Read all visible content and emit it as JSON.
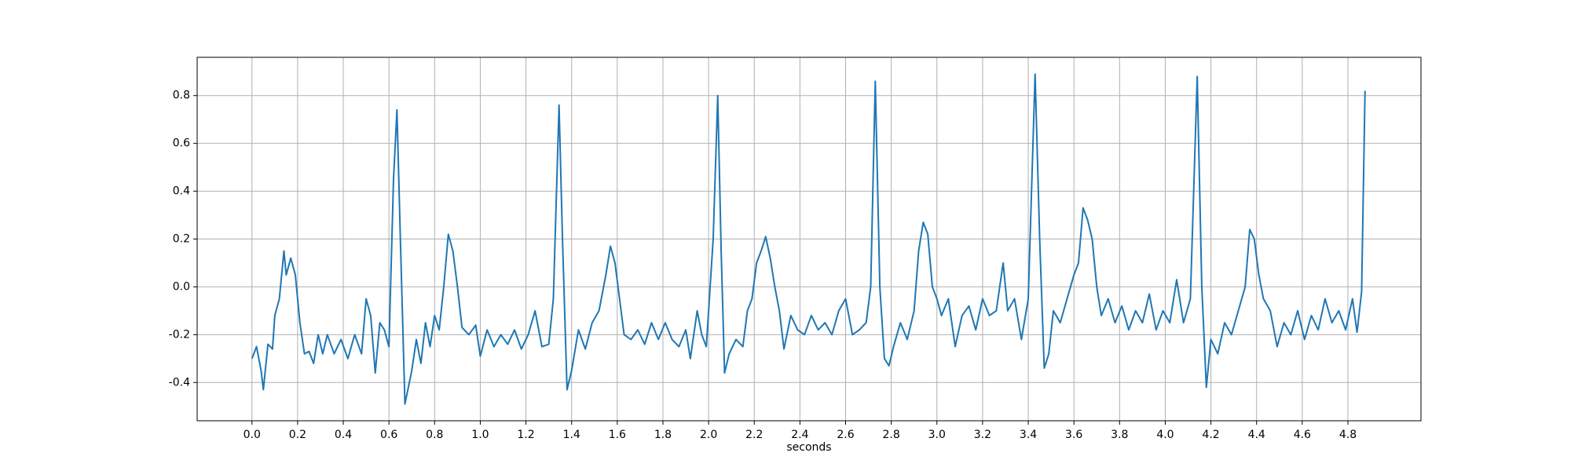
{
  "chart_data": {
    "type": "line",
    "xlabel": "seconds",
    "color": "#1f77b4",
    "grid": true,
    "xlim": [
      -0.24,
      5.12
    ],
    "ylim": [
      -0.56,
      0.96
    ],
    "xticks": [
      {
        "value": 0,
        "label": "0.0"
      },
      0.2,
      0.4,
      0.6,
      0.8,
      {
        "value": 1,
        "label": "1.0"
      },
      1.2,
      1.4,
      1.6,
      1.8,
      {
        "value": 2,
        "label": "2.0"
      },
      2.2,
      2.4,
      2.6,
      2.8,
      {
        "value": 3,
        "label": "3.0"
      },
      3.2,
      3.4,
      3.6,
      3.8,
      {
        "value": 4,
        "label": "4.0"
      },
      4.2,
      4.4,
      4.6,
      4.8
    ],
    "yticks": [
      -0.4,
      -0.2,
      {
        "value": 0,
        "label": "0.0"
      },
      0.2,
      0.4,
      0.6,
      0.8
    ],
    "x": [
      0.0,
      0.02,
      0.04,
      0.05,
      0.07,
      0.09,
      0.1,
      0.12,
      0.14,
      0.15,
      0.17,
      0.19,
      0.21,
      0.23,
      0.25,
      0.27,
      0.29,
      0.31,
      0.33,
      0.36,
      0.39,
      0.42,
      0.45,
      0.48,
      0.5,
      0.52,
      0.54,
      0.56,
      0.58,
      0.6,
      0.62,
      0.635,
      0.65,
      0.67,
      0.7,
      0.72,
      0.74,
      0.76,
      0.78,
      0.8,
      0.82,
      0.84,
      0.86,
      0.88,
      0.9,
      0.92,
      0.95,
      0.98,
      1.0,
      1.03,
      1.06,
      1.09,
      1.12,
      1.15,
      1.18,
      1.21,
      1.24,
      1.27,
      1.3,
      1.32,
      1.345,
      1.36,
      1.38,
      1.4,
      1.43,
      1.46,
      1.49,
      1.52,
      1.55,
      1.57,
      1.59,
      1.61,
      1.63,
      1.66,
      1.69,
      1.72,
      1.75,
      1.78,
      1.81,
      1.84,
      1.87,
      1.9,
      1.92,
      1.95,
      1.97,
      1.99,
      2.02,
      2.04,
      2.055,
      2.07,
      2.09,
      2.12,
      2.15,
      2.17,
      2.19,
      2.21,
      2.23,
      2.25,
      2.27,
      2.29,
      2.31,
      2.33,
      2.36,
      2.39,
      2.42,
      2.45,
      2.48,
      2.51,
      2.54,
      2.57,
      2.6,
      2.63,
      2.66,
      2.69,
      2.71,
      2.73,
      2.75,
      2.77,
      2.79,
      2.81,
      2.84,
      2.87,
      2.9,
      2.92,
      2.94,
      2.96,
      2.98,
      3.0,
      3.02,
      3.05,
      3.08,
      3.11,
      3.14,
      3.17,
      3.2,
      3.23,
      3.26,
      3.29,
      3.31,
      3.34,
      3.37,
      3.4,
      3.43,
      3.45,
      3.47,
      3.49,
      3.51,
      3.54,
      3.57,
      3.6,
      3.62,
      3.64,
      3.66,
      3.68,
      3.7,
      3.72,
      3.75,
      3.78,
      3.81,
      3.84,
      3.87,
      3.9,
      3.93,
      3.96,
      3.99,
      4.02,
      4.05,
      4.08,
      4.11,
      4.14,
      4.16,
      4.18,
      4.2,
      4.23,
      4.26,
      4.29,
      4.32,
      4.35,
      4.37,
      4.39,
      4.41,
      4.43,
      4.46,
      4.49,
      4.52,
      4.55,
      4.58,
      4.61,
      4.64,
      4.67,
      4.7,
      4.73,
      4.76,
      4.79,
      4.82,
      4.84,
      4.86,
      4.875
    ],
    "values": [
      -0.3,
      -0.25,
      -0.35,
      -0.43,
      -0.24,
      -0.26,
      -0.12,
      -0.05,
      0.15,
      0.05,
      0.12,
      0.05,
      -0.15,
      -0.28,
      -0.27,
      -0.32,
      -0.2,
      -0.28,
      -0.2,
      -0.28,
      -0.22,
      -0.3,
      -0.2,
      -0.28,
      -0.05,
      -0.12,
      -0.36,
      -0.15,
      -0.18,
      -0.25,
      0.45,
      0.74,
      0.2,
      -0.49,
      -0.35,
      -0.22,
      -0.32,
      -0.15,
      -0.25,
      -0.12,
      -0.18,
      0.0,
      0.22,
      0.15,
      0.0,
      -0.17,
      -0.2,
      -0.16,
      -0.29,
      -0.18,
      -0.25,
      -0.2,
      -0.24,
      -0.18,
      -0.26,
      -0.2,
      -0.1,
      -0.25,
      -0.24,
      -0.05,
      0.76,
      0.2,
      -0.43,
      -0.35,
      -0.18,
      -0.26,
      -0.15,
      -0.1,
      0.05,
      0.17,
      0.1,
      -0.05,
      -0.2,
      -0.22,
      -0.18,
      -0.24,
      -0.15,
      -0.22,
      -0.15,
      -0.22,
      -0.25,
      -0.18,
      -0.3,
      -0.1,
      -0.2,
      -0.25,
      0.2,
      0.8,
      0.15,
      -0.36,
      -0.28,
      -0.22,
      -0.25,
      -0.1,
      -0.05,
      0.1,
      0.15,
      0.21,
      0.12,
      0.0,
      -0.1,
      -0.26,
      -0.12,
      -0.18,
      -0.2,
      -0.12,
      -0.18,
      -0.15,
      -0.2,
      -0.1,
      -0.05,
      -0.2,
      -0.18,
      -0.15,
      0.0,
      0.86,
      0.0,
      -0.3,
      -0.33,
      -0.25,
      -0.15,
      -0.22,
      -0.1,
      0.15,
      0.27,
      0.22,
      0.0,
      -0.05,
      -0.12,
      -0.05,
      -0.25,
      -0.12,
      -0.08,
      -0.18,
      -0.05,
      -0.12,
      -0.1,
      0.1,
      -0.1,
      -0.05,
      -0.22,
      -0.05,
      0.89,
      0.2,
      -0.34,
      -0.28,
      -0.1,
      -0.15,
      -0.05,
      0.05,
      0.1,
      0.33,
      0.28,
      0.2,
      0.0,
      -0.12,
      -0.05,
      -0.15,
      -0.08,
      -0.18,
      -0.1,
      -0.15,
      -0.03,
      -0.18,
      -0.1,
      -0.15,
      0.03,
      -0.15,
      -0.05,
      0.88,
      0.0,
      -0.42,
      -0.22,
      -0.28,
      -0.15,
      -0.2,
      -0.1,
      0.0,
      0.24,
      0.2,
      0.05,
      -0.05,
      -0.1,
      -0.25,
      -0.15,
      -0.2,
      -0.1,
      -0.22,
      -0.12,
      -0.18,
      -0.05,
      -0.15,
      -0.1,
      -0.18,
      -0.05,
      -0.19,
      -0.02,
      0.82
    ]
  }
}
